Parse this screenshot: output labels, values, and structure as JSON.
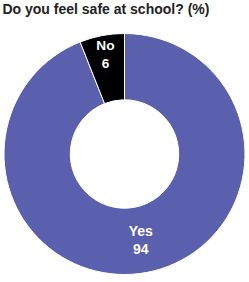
{
  "chart_data": {
    "type": "pie",
    "title": "Do you feel safe at school? (%)",
    "categories": [
      "Yes",
      "No"
    ],
    "values": [
      94,
      6
    ],
    "colors": [
      "#5a5fae",
      "#000000"
    ],
    "data_labels": true
  }
}
